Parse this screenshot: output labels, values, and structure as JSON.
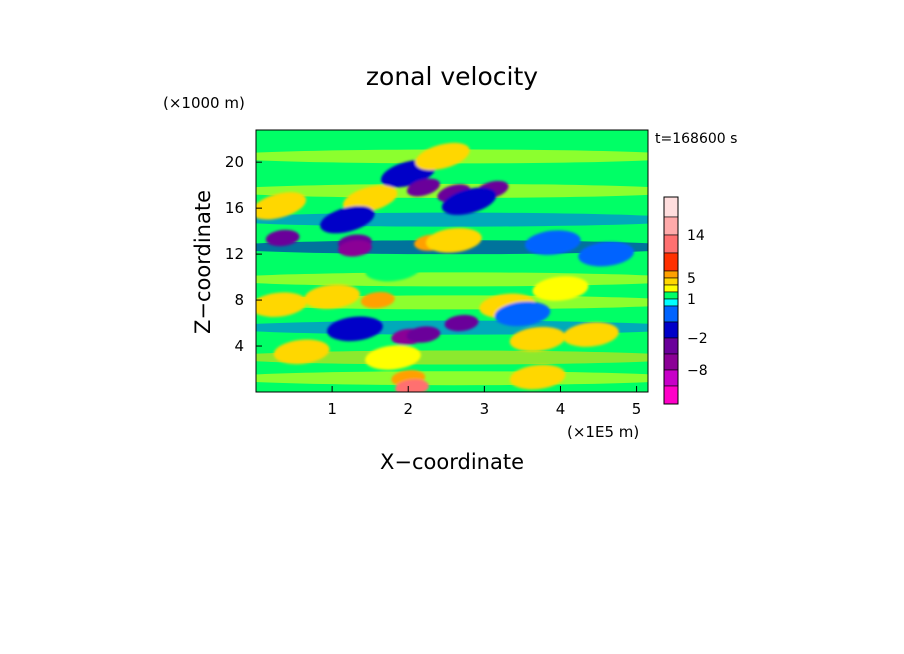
{
  "chart_data": {
    "type": "heatmap",
    "title": "zonal velocity",
    "time_label": "t=168600 s",
    "xlabel": "X−coordinate",
    "ylabel": "Z−coordinate",
    "x_unit": "(×1E5 m)",
    "y_unit": "(×1000 m)",
    "xlim": [
      0,
      5.15
    ],
    "ylim": [
      0,
      22.8
    ],
    "x_ticks": [
      1,
      2,
      3,
      4,
      5
    ],
    "x_tick_labels": [
      "1",
      "2",
      "3",
      "4",
      "5"
    ],
    "y_ticks": [
      4,
      8,
      12,
      16,
      20
    ],
    "y_tick_labels": [
      "4",
      "8",
      "12",
      "16",
      "20"
    ],
    "colorbar": {
      "levels": [
        -14,
        -11,
        -8,
        -5,
        -2,
        -1,
        0,
        1,
        2,
        3,
        5,
        8,
        11,
        14,
        17
      ],
      "colors": [
        "#ff00c8",
        "#c800c8",
        "#8b0096",
        "#6a009a",
        "#0000c8",
        "#0064ff",
        "#00ffff",
        "#00ff66",
        "#ffff00",
        "#ffd700",
        "#ffa000",
        "#ff3000",
        "#ff7070",
        "#ffaaaa",
        "#ffdede"
      ],
      "tick_values": [
        14,
        5,
        1,
        -2,
        -8
      ],
      "tick_labels": [
        "14",
        "5",
        "1",
        "−2",
        "−8"
      ]
    },
    "grid": false,
    "legend": "colorbar-right",
    "features": [
      {
        "x": 2.0,
        "z": 19.0,
        "value": -2
      },
      {
        "x": 2.2,
        "z": 17.8,
        "value": -5
      },
      {
        "x": 2.6,
        "z": 17.3,
        "value": -5
      },
      {
        "x": 3.1,
        "z": 17.6,
        "value": -5
      },
      {
        "x": 2.8,
        "z": 16.6,
        "value": -2
      },
      {
        "x": 1.5,
        "z": 16.8,
        "value": 3
      },
      {
        "x": 0.3,
        "z": 16.2,
        "value": 3
      },
      {
        "x": 1.2,
        "z": 15.0,
        "value": -2
      },
      {
        "x": 0.35,
        "z": 13.4,
        "value": -5
      },
      {
        "x": 1.3,
        "z": 13.0,
        "value": -5
      },
      {
        "x": 1.3,
        "z": 12.5,
        "value": -8
      },
      {
        "x": 2.3,
        "z": 13.0,
        "value": 5
      },
      {
        "x": 2.6,
        "z": 13.2,
        "value": 3
      },
      {
        "x": 3.9,
        "z": 13.0,
        "value": -1
      },
      {
        "x": 4.6,
        "z": 12.0,
        "value": -1
      },
      {
        "x": 1.8,
        "z": 10.7,
        "value": 1
      },
      {
        "x": 1.0,
        "z": 8.3,
        "value": 3
      },
      {
        "x": 1.6,
        "z": 8.0,
        "value": 5
      },
      {
        "x": 0.3,
        "z": 7.6,
        "value": 3
      },
      {
        "x": 3.3,
        "z": 7.5,
        "value": 3
      },
      {
        "x": 3.5,
        "z": 6.8,
        "value": -1
      },
      {
        "x": 2.7,
        "z": 6.0,
        "value": -5
      },
      {
        "x": 1.3,
        "z": 5.5,
        "value": -2
      },
      {
        "x": 2.0,
        "z": 4.8,
        "value": -8
      },
      {
        "x": 4.4,
        "z": 5.0,
        "value": 3
      },
      {
        "x": 3.7,
        "z": 4.6,
        "value": 3
      },
      {
        "x": 0.6,
        "z": 3.5,
        "value": 3
      },
      {
        "x": 1.8,
        "z": 3.0,
        "value": 2
      },
      {
        "x": 2.0,
        "z": 1.2,
        "value": 5
      },
      {
        "x": 2.05,
        "z": 0.4,
        "value": 11
      },
      {
        "x": 3.7,
        "z": 1.3,
        "value": 3
      },
      {
        "x": 2.2,
        "z": 5.0,
        "value": -5
      },
      {
        "x": 2.45,
        "z": 20.5,
        "value": 3
      },
      {
        "x": 4.0,
        "z": 9.0,
        "value": 2
      }
    ]
  }
}
